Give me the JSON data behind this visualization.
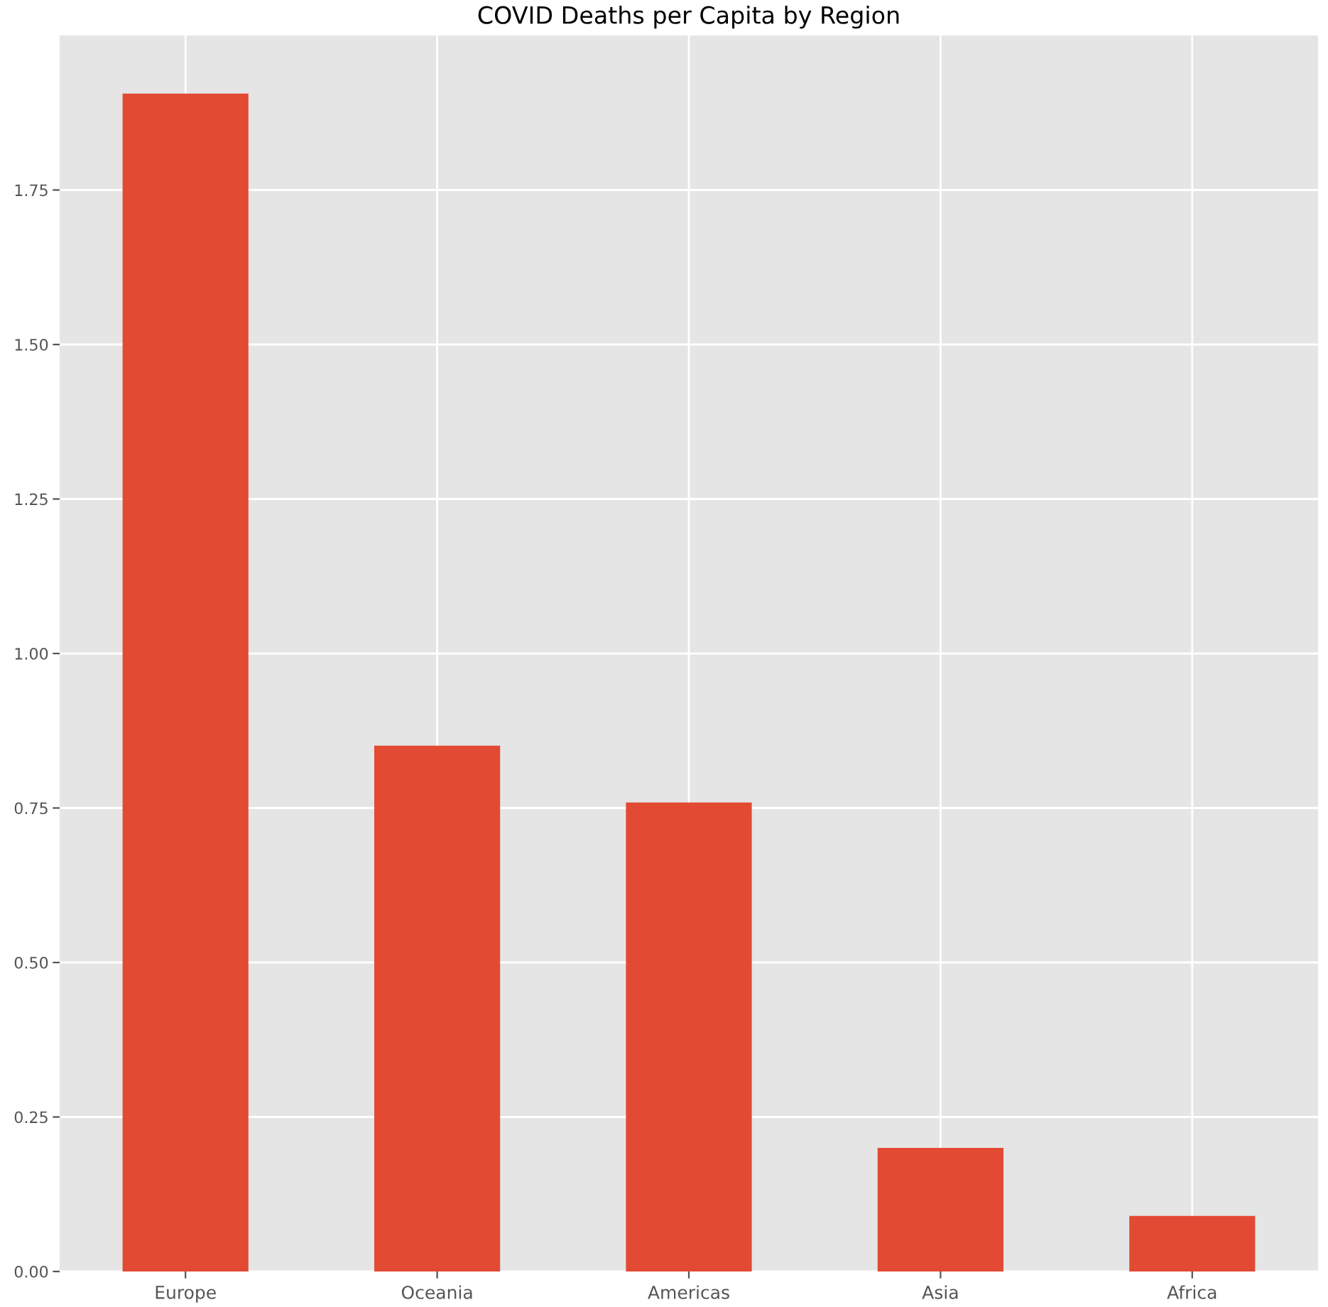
{
  "chart_data": {
    "type": "bar",
    "title": "COVID Deaths per Capita by Region",
    "categories": [
      "Europe",
      "Oceania",
      "Americas",
      "Asia",
      "Africa"
    ],
    "values": [
      1.906,
      0.851,
      0.759,
      0.2,
      0.09
    ],
    "color": "#e24a33",
    "ylim": [
      0,
      2.0
    ],
    "yticks": [
      {
        "value": 0,
        "label": "0.00"
      },
      {
        "value": 0.25,
        "label": "0.25"
      },
      {
        "value": 0.5,
        "label": "0.50"
      },
      {
        "value": 0.75,
        "label": "0.75"
      },
      {
        "value": 1.0,
        "label": "1.00"
      },
      {
        "value": 1.25,
        "label": "1.25"
      },
      {
        "value": 1.5,
        "label": "1.50"
      },
      {
        "value": 1.75,
        "label": "1.75"
      }
    ],
    "grid": true
  }
}
